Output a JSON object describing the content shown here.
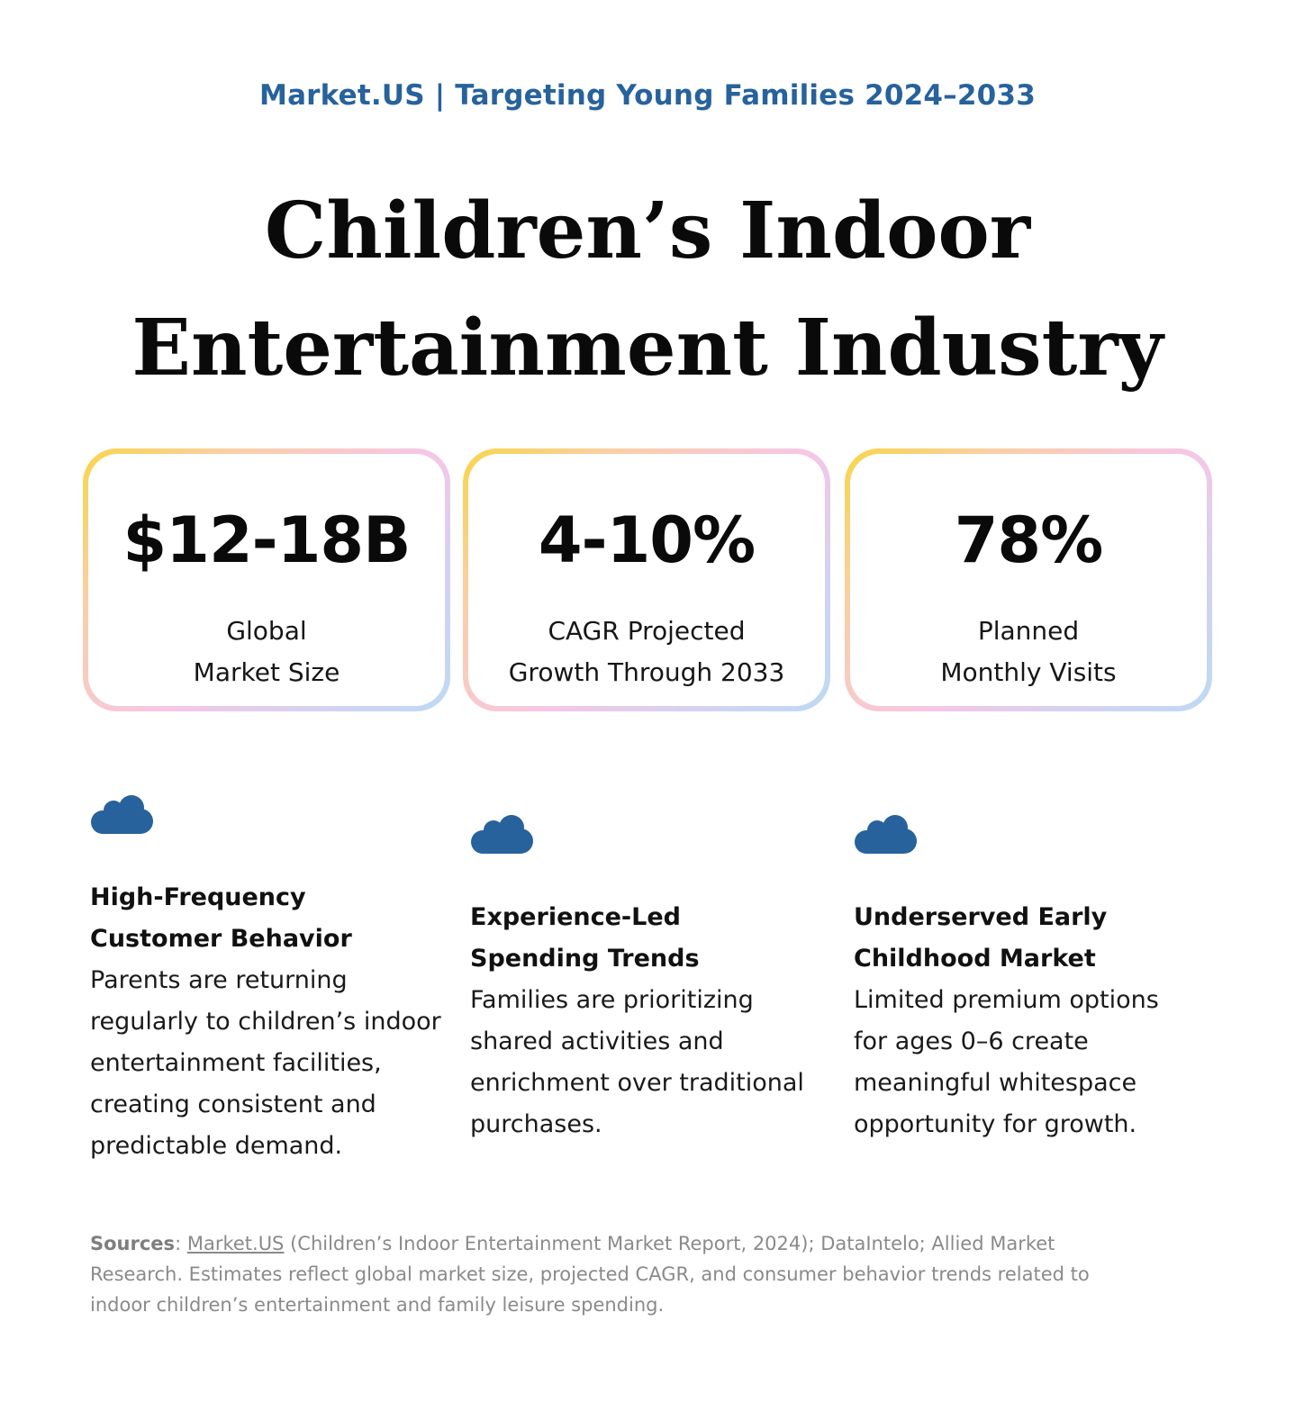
{
  "header": {
    "kicker": "Market.US | Targeting Young Families 2024–2033",
    "title_line1": "Children’s Indoor",
    "title_line2": "Entertainment Industry"
  },
  "stats": [
    {
      "value": "$12-18B",
      "label_line1": "Global",
      "label_line2": "Market Size"
    },
    {
      "value": "4-10%",
      "label_line1": "CAGR Projected",
      "label_line2": "Growth Through 2033"
    },
    {
      "value": "78%",
      "label_line1": "Planned",
      "label_line2": "Monthly Visits"
    }
  ],
  "features": [
    {
      "icon": "cloud-icon",
      "title_line1": "High-Frequency",
      "title_line2": "Customer Behavior",
      "body_lines": [
        "Parents are returning",
        "regularly to children’s indoor",
        "entertainment facilities,",
        "creating consistent and",
        "predictable demand."
      ]
    },
    {
      "icon": "cloud-icon",
      "title_line1": "Experience-Led",
      "title_line2": "Spending Trends",
      "body_lines": [
        "Families are prioritizing",
        "shared activities and",
        "enrichment over traditional",
        "purchases."
      ]
    },
    {
      "icon": "cloud-icon",
      "title_line1": "Underserved Early",
      "title_line2": "Childhood Market",
      "body_lines": [
        "Limited premium options",
        "for ages 0–6 create",
        "meaningful whitespace",
        "opportunity for growth."
      ]
    }
  ],
  "sources": {
    "label": "Sources",
    "sep": ": ",
    "link_text": "Market.US",
    "line1_rest": " (Children’s Indoor Entertainment Market Report, 2024); DataIntelo; Allied Market",
    "line2": "Research. Estimates reflect global market size, projected CAGR, and consumer behavior trends related to",
    "line3": "indoor children’s entertainment and family leisure spending."
  },
  "colors": {
    "accent_blue": "#27629c",
    "border_gradient": [
      "#f8d54a",
      "#f6c6e6",
      "#bcdaf2"
    ],
    "muted_text": "#8a8a8a"
  }
}
